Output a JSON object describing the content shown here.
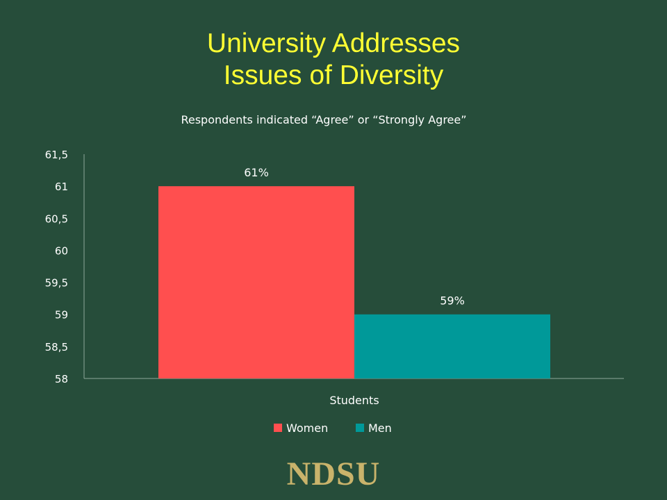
{
  "slide": {
    "title_line1": "University Addresses",
    "title_line2": "Issues of Diversity",
    "logo_text": "NDSU"
  },
  "colors": {
    "background": "#264d3a",
    "title": "#ffff33",
    "women": "#ff4f4f",
    "men": "#009999",
    "text": "#ffffff"
  },
  "chart_data": {
    "type": "bar",
    "title": "Respondents indicated “Agree” or “Strongly Agree”",
    "categories": [
      "Students"
    ],
    "series": [
      {
        "name": "Women",
        "values": [
          61
        ],
        "label": "61%"
      },
      {
        "name": "Men",
        "values": [
          59
        ],
        "label": "59%"
      }
    ],
    "ylim": [
      58,
      61.5
    ],
    "yticks": [
      58,
      58.5,
      59,
      59.5,
      60,
      60.5,
      61,
      61.5
    ],
    "ytick_labels": [
      "58",
      "58,5",
      "59",
      "59,5",
      "60",
      "60,5",
      "61",
      "61,5"
    ],
    "legend": "bottom",
    "grid": false
  }
}
